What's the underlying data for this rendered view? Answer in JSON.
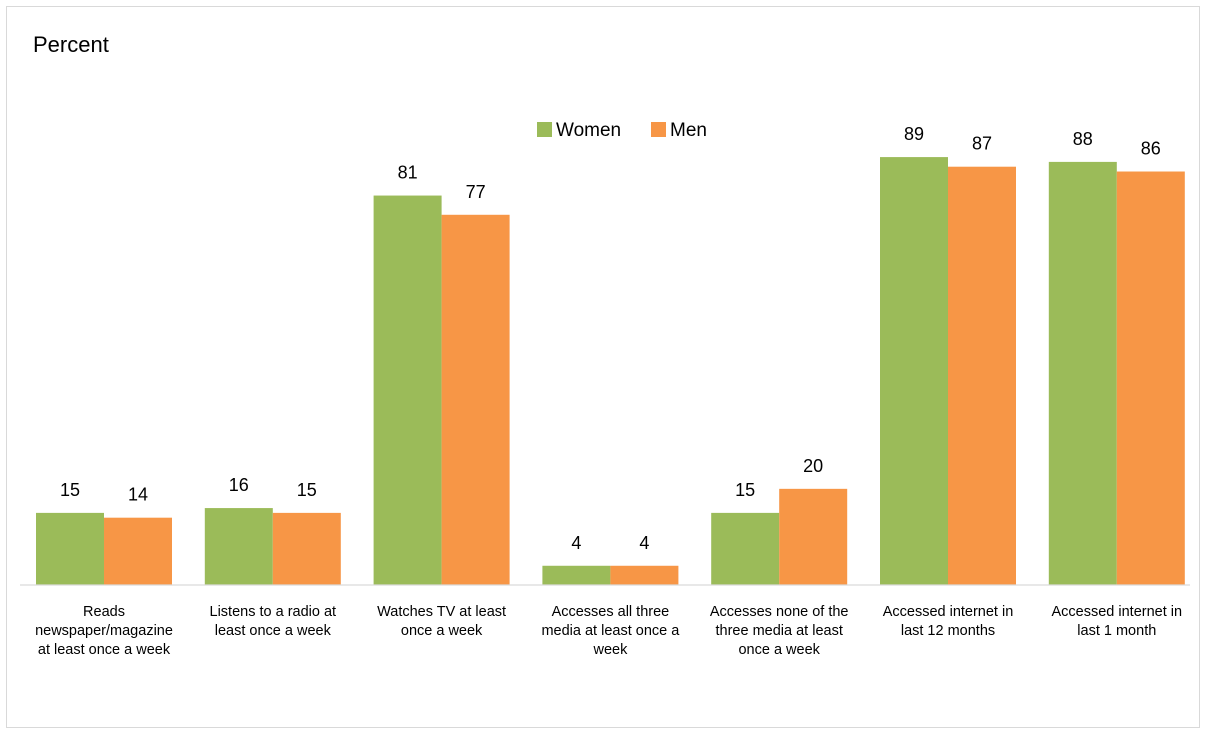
{
  "chart_data": {
    "type": "bar",
    "ylabel": "Percent",
    "xlabel": "",
    "ylim": [
      0,
      100
    ],
    "grid": false,
    "legend_placement": "top-center",
    "categories": [
      [
        "Reads",
        "newspaper/magazine",
        "at least once a week"
      ],
      [
        "Listens to a radio at",
        "least once a week"
      ],
      [
        "Watches TV at least",
        "once a week"
      ],
      [
        "Accesses all three",
        "media at least once a",
        "week"
      ],
      [
        "Accesses none of the",
        "three media at least",
        "once a week"
      ],
      [
        "Accessed internet in",
        "last 12 months"
      ],
      [
        "Accessed internet in",
        "last 1 month"
      ]
    ],
    "series": [
      {
        "name": "Women",
        "color": "#9BBB59",
        "values": [
          15,
          16,
          81,
          4,
          15,
          89,
          88
        ]
      },
      {
        "name": "Men",
        "color": "#F79646",
        "values": [
          14,
          15,
          77,
          4,
          20,
          87,
          86
        ]
      }
    ]
  }
}
